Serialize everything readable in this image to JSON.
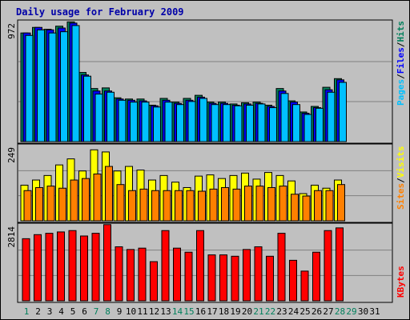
{
  "title": "Daily usage for February 2009",
  "colors": {
    "background": "#c0c0c0",
    "panel": "#c0c0c0",
    "grid": "#808080",
    "hits": "#00805c",
    "files": "#0000ff",
    "pages": "#00c0ff",
    "visits": "#ffff00",
    "sites": "#ff8000",
    "kbytes": "#ff0000",
    "title": "#0000a8",
    "weekday": "#000000",
    "weekend": "#00805c"
  },
  "right_labels": {
    "top": [
      "Pages",
      "/",
      "Files",
      "/",
      "Hits"
    ],
    "middle": [
      "Sites",
      "/",
      "Visits"
    ],
    "bottom": [
      "KBytes"
    ]
  },
  "chart_data": [
    {
      "type": "bar",
      "panel": "hits-files-pages",
      "ymax_label": "972",
      "ylim": [
        0,
        972
      ],
      "categories": [
        "1",
        "2",
        "3",
        "4",
        "5",
        "6",
        "7",
        "8",
        "9",
        "10",
        "11",
        "12",
        "13",
        "14",
        "15",
        "16",
        "17",
        "18",
        "19",
        "20",
        "21",
        "22",
        "23",
        "24",
        "25",
        "26",
        "27",
        "28",
        "29",
        "30",
        "31"
      ],
      "series": [
        {
          "name": "Hits",
          "values": [
            880,
            925,
            910,
            935,
            970,
            560,
            430,
            435,
            355,
            345,
            345,
            295,
            350,
            320,
            350,
            375,
            320,
            320,
            305,
            315,
            320,
            295,
            430,
            330,
            240,
            285,
            440,
            510,
            null,
            null,
            null
          ]
        },
        {
          "name": "Files",
          "values": [
            880,
            925,
            905,
            920,
            960,
            540,
            410,
            410,
            345,
            335,
            330,
            290,
            335,
            310,
            335,
            360,
            310,
            310,
            295,
            305,
            310,
            285,
            410,
            320,
            230,
            275,
            420,
            500,
            null,
            null,
            null
          ]
        },
        {
          "name": "Pages",
          "values": [
            860,
            905,
            880,
            890,
            940,
            530,
            385,
            400,
            335,
            320,
            320,
            280,
            320,
            300,
            325,
            350,
            300,
            300,
            290,
            295,
            305,
            275,
            390,
            300,
            220,
            270,
            400,
            480,
            null,
            null,
            null
          ]
        }
      ]
    },
    {
      "type": "bar",
      "panel": "visits-sites",
      "ymax_label": "249",
      "ylim": [
        0,
        249
      ],
      "categories": [
        "1",
        "2",
        "3",
        "4",
        "5",
        "6",
        "7",
        "8",
        "9",
        "10",
        "11",
        "12",
        "13",
        "14",
        "15",
        "16",
        "17",
        "18",
        "19",
        "20",
        "21",
        "22",
        "23",
        "24",
        "25",
        "26",
        "27",
        "28",
        "29",
        "30",
        "31"
      ],
      "series": [
        {
          "name": "Visits",
          "values": [
            118,
            135,
            150,
            185,
            205,
            165,
            235,
            228,
            165,
            180,
            168,
            135,
            150,
            128,
            110,
            148,
            152,
            140,
            150,
            158,
            138,
            160,
            150,
            132,
            90,
            118,
            108,
            135,
            null,
            null,
            null
          ]
        },
        {
          "name": "Sites",
          "values": [
            100,
            110,
            115,
            108,
            135,
            140,
            155,
            180,
            120,
            100,
            105,
            100,
            100,
            100,
            100,
            98,
            105,
            110,
            105,
            115,
            115,
            110,
            115,
            88,
            82,
            100,
            100,
            120,
            null,
            null,
            null
          ]
        }
      ]
    },
    {
      "type": "bar",
      "panel": "kbytes",
      "ymax_label": "2814",
      "ylim": [
        0,
        2814
      ],
      "categories": [
        "1",
        "2",
        "3",
        "4",
        "5",
        "6",
        "7",
        "8",
        "9",
        "10",
        "11",
        "12",
        "13",
        "14",
        "15",
        "16",
        "17",
        "18",
        "19",
        "20",
        "21",
        "22",
        "23",
        "24",
        "25",
        "26",
        "27",
        "28",
        "29",
        "30",
        "31"
      ],
      "series": [
        {
          "name": "KBytes",
          "values": [
            2300,
            2450,
            2500,
            2550,
            2600,
            2400,
            2500,
            2820,
            2000,
            1900,
            1950,
            1450,
            2600,
            1950,
            1800,
            2600,
            1700,
            1700,
            1650,
            1900,
            2000,
            1650,
            2500,
            1500,
            1100,
            1800,
            2600,
            2700,
            null,
            null,
            null
          ]
        }
      ]
    }
  ]
}
